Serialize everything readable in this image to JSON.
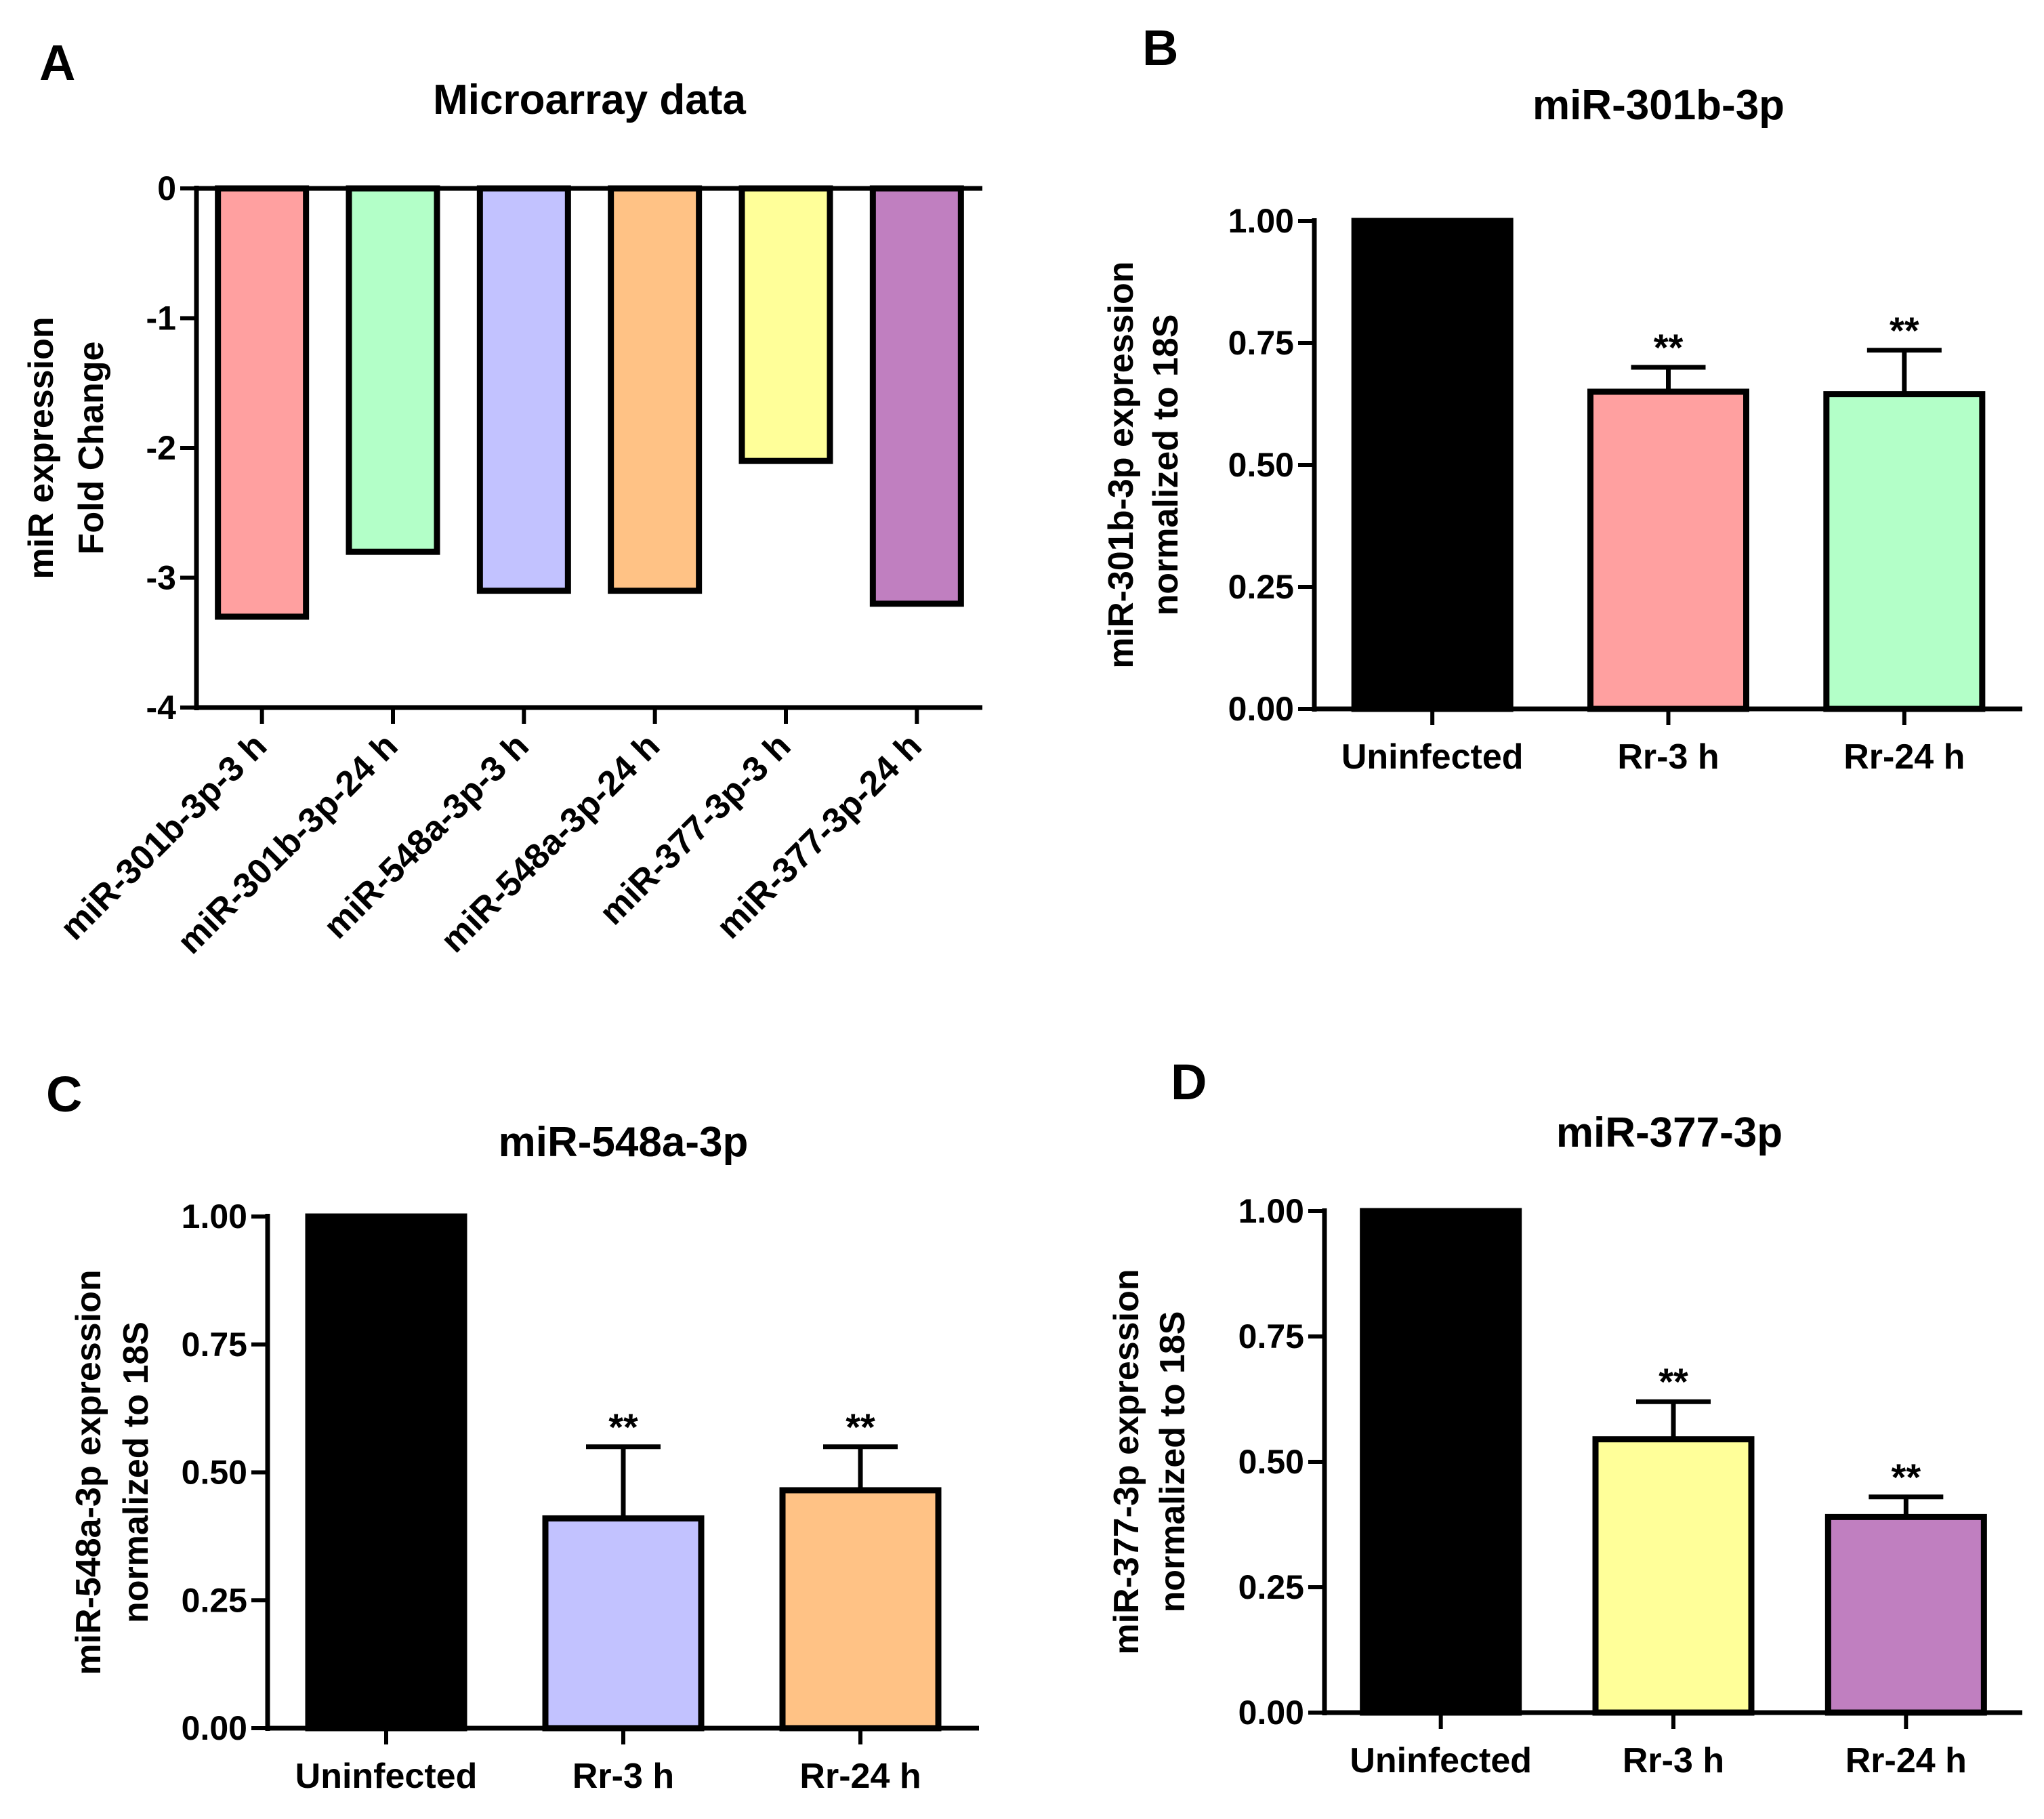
{
  "chart_data": [
    {
      "panel": "A",
      "type": "bar",
      "title": "Microarray data",
      "ylabel": [
        "miR expression",
        "Fold Change"
      ],
      "xlabel": "",
      "ylim": [
        -4,
        0
      ],
      "yticks": [
        0,
        -1,
        -2,
        -3,
        -4
      ],
      "ytick_labels": [
        "0",
        "-1",
        "-2",
        "-3",
        "-4"
      ],
      "categories": [
        "miR-301b-3p-3 h",
        "miR-301b-3p-24 h",
        "miR-548a-3p-3 h",
        "miR-548a-3p-24 h",
        "miR-377-3p-3 h",
        "miR-377-3p-24 h"
      ],
      "values": [
        -3.3,
        -2.8,
        -3.1,
        -3.1,
        -2.1,
        -3.2
      ],
      "colors": [
        "#ffa0a0",
        "#b3ffc8",
        "#c2c2ff",
        "#ffc285",
        "#ffff99",
        "#c07fc0"
      ]
    },
    {
      "panel": "B",
      "type": "bar",
      "title": "miR-301b-3p",
      "ylabel": [
        "miR-301b-3p expression",
        "normalized to 18S"
      ],
      "xlabel": "",
      "ylim": [
        0,
        1
      ],
      "yticks": [
        0,
        0.25,
        0.5,
        0.75,
        1
      ],
      "ytick_labels": [
        "0.00",
        "0.25",
        "0.50",
        "0.75",
        "1.00"
      ],
      "categories": [
        "Uninfected",
        "Rr-3 h",
        "Rr-24 h"
      ],
      "values": [
        1.0,
        0.65,
        0.645
      ],
      "errors": [
        0,
        0.05,
        0.09
      ],
      "significance": [
        "",
        "**",
        "**"
      ],
      "colors": [
        "#000000",
        "#ffa0a0",
        "#b3ffc8"
      ]
    },
    {
      "panel": "C",
      "type": "bar",
      "title": "miR-548a-3p",
      "ylabel": [
        "miR-548a-3p expression",
        "normalized to 18S"
      ],
      "xlabel": "",
      "ylim": [
        0,
        1
      ],
      "yticks": [
        0,
        0.25,
        0.5,
        0.75,
        1
      ],
      "ytick_labels": [
        "0.00",
        "0.25",
        "0.50",
        "0.75",
        "1.00"
      ],
      "categories": [
        "Uninfected",
        "Rr-3 h",
        "Rr-24 h"
      ],
      "values": [
        1.0,
        0.41,
        0.465
      ],
      "errors": [
        0,
        0.14,
        0.085
      ],
      "significance": [
        "",
        "**",
        "**"
      ],
      "colors": [
        "#000000",
        "#c2c2ff",
        "#ffc285"
      ]
    },
    {
      "panel": "D",
      "type": "bar",
      "title": "miR-377-3p",
      "ylabel": [
        "miR-377-3p expression",
        "normalized to 18S"
      ],
      "xlabel": "",
      "ylim": [
        0,
        1
      ],
      "yticks": [
        0,
        0.25,
        0.5,
        0.75,
        1
      ],
      "ytick_labels": [
        "0.00",
        "0.25",
        "0.50",
        "0.75",
        "1.00"
      ],
      "categories": [
        "Uninfected",
        "Rr-3 h",
        "Rr-24 h"
      ],
      "values": [
        1.0,
        0.545,
        0.39
      ],
      "errors": [
        0,
        0.075,
        0.04
      ],
      "significance": [
        "",
        "**",
        "**"
      ],
      "colors": [
        "#000000",
        "#ffff99",
        "#c07fc0"
      ]
    }
  ]
}
